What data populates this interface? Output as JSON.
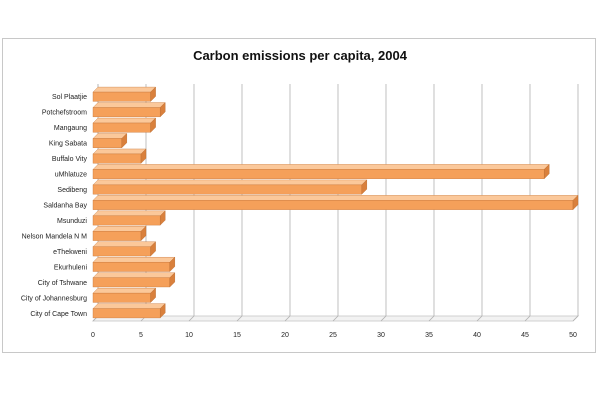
{
  "chart_data": {
    "type": "bar",
    "orientation": "horizontal",
    "title": "Carbon emissions per capita, 2004",
    "xlabel": "",
    "ylabel": "",
    "categories": [
      "Sol Plaatjie",
      "Potchefstroom",
      "Mangaung",
      "King Sabata",
      "Buffalo Vity",
      "uMhlatuze",
      "Sedibeng",
      "Saldanha Bay",
      "Msunduzi",
      "Nelson Mandela N M",
      "eThekweni",
      "Ekurhuleni",
      "City of Tshwane",
      "City of Johannesburg",
      "City of Cape Town"
    ],
    "values": [
      6,
      7,
      6,
      3,
      5,
      47,
      28,
      50,
      7,
      5,
      6,
      8,
      8,
      6,
      7
    ],
    "xlim": [
      0,
      50
    ],
    "x_ticks": [
      "0",
      "5",
      "10",
      "15",
      "20",
      "25",
      "30",
      "35",
      "40",
      "45",
      "50"
    ],
    "grid": "vertical",
    "legend": "none",
    "colors": {
      "bar_fill": "#f5a05a",
      "bar_top": "#fbc89a",
      "bar_side": "#d9803c",
      "grid": "#b0b0b0",
      "wall": "#d0d0d0"
    }
  }
}
